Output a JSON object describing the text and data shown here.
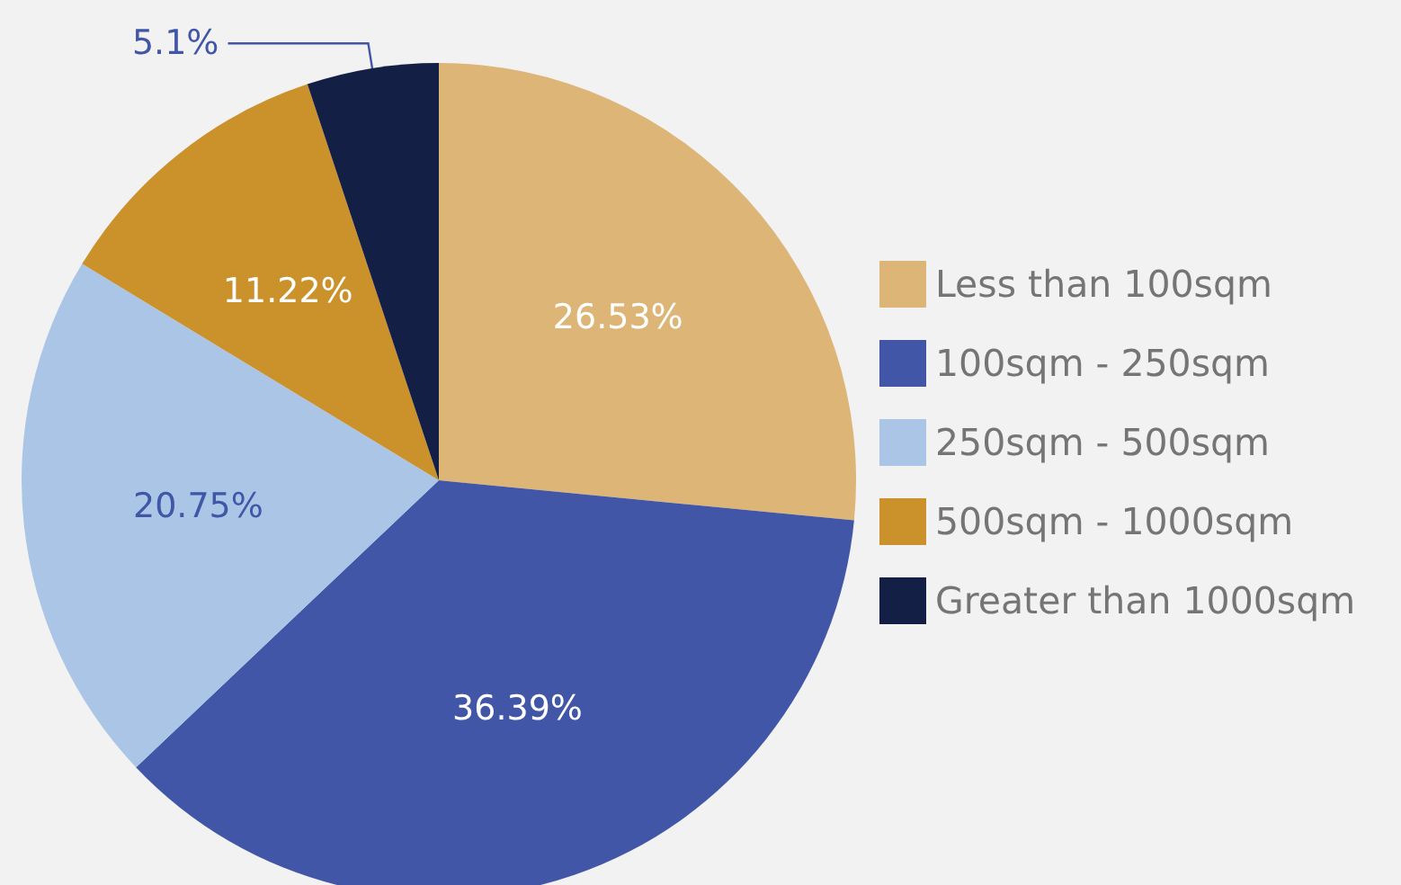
{
  "chart_data": {
    "type": "pie",
    "categories": [
      "Less than 100sqm",
      "100sqm - 250sqm",
      "250sqm - 500sqm",
      "500sqm - 1000sqm",
      "Greater than 1000sqm"
    ],
    "values": [
      26.53,
      36.39,
      20.75,
      11.22,
      5.1
    ],
    "colors": [
      "#ddb576",
      "#4156a6",
      "#abc5e6",
      "#cb912b",
      "#141f45"
    ],
    "value_labels": [
      "26.53%",
      "36.39%",
      "20.75%",
      "11.22%",
      "5.1%"
    ],
    "legend": "right"
  }
}
